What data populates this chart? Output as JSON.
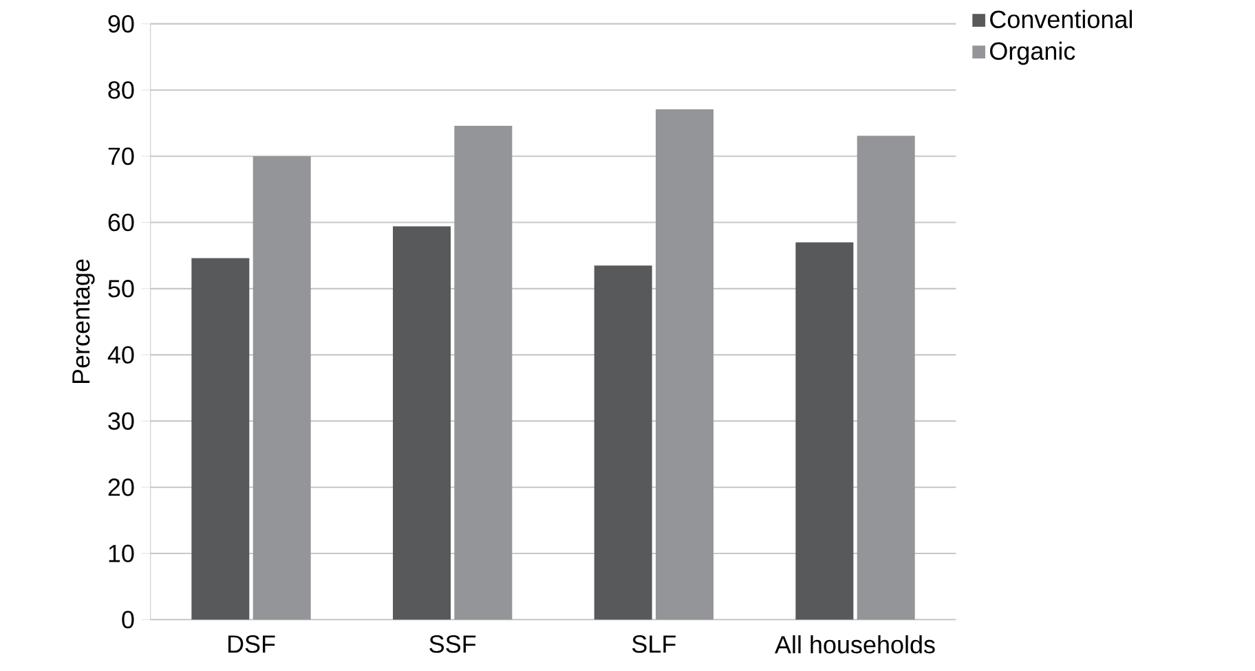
{
  "chart_data": {
    "type": "bar",
    "ylabel": "Percentage",
    "categories": [
      "DSF",
      "SSF",
      "SLF",
      "All households"
    ],
    "series": [
      {
        "name": "Conventional",
        "color": "#58595b",
        "values": [
          54.6,
          59.4,
          53.5,
          57.0
        ]
      },
      {
        "name": "Organic",
        "color": "#939598",
        "values": [
          70.0,
          74.6,
          77.1,
          73.1
        ]
      }
    ],
    "ylim": [
      0,
      90
    ],
    "yticks": [
      0,
      10,
      20,
      30,
      40,
      50,
      60,
      70,
      80,
      90
    ],
    "grid": "y",
    "legend": "top right"
  }
}
